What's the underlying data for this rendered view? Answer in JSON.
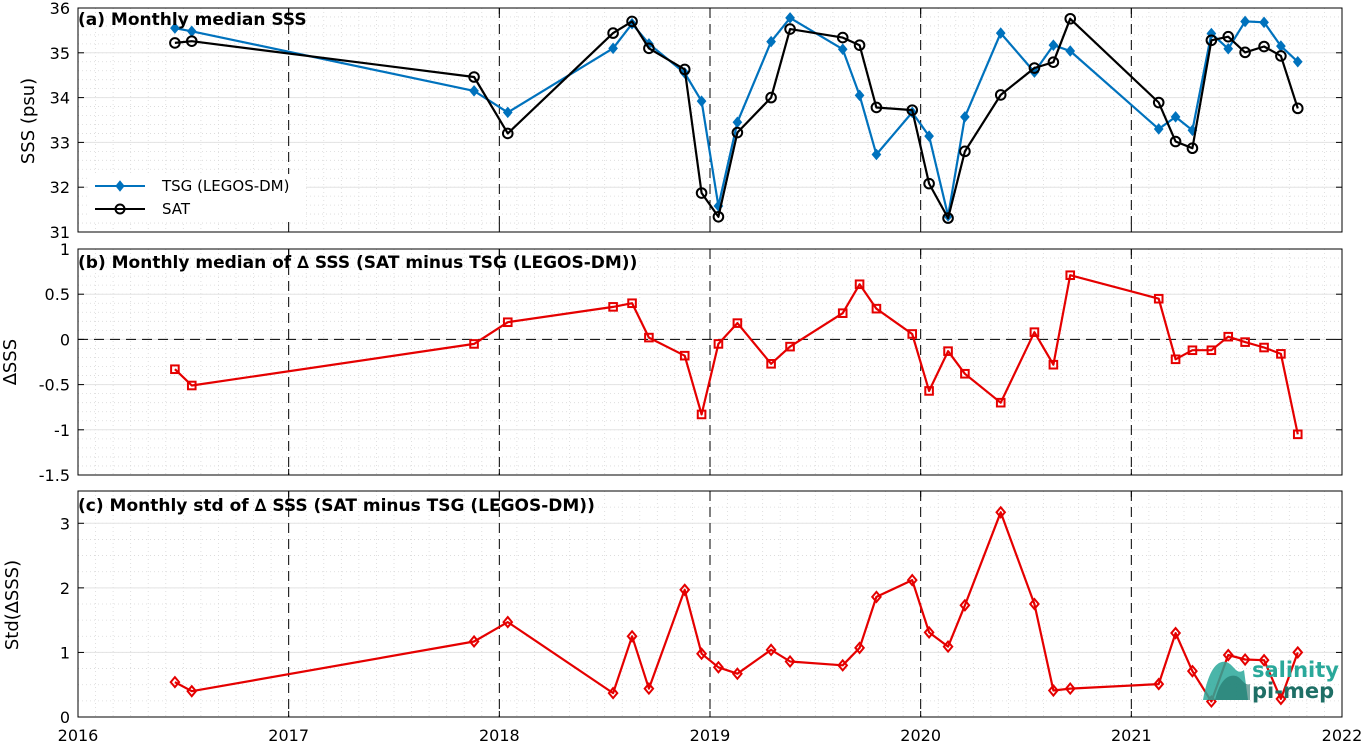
{
  "colors": {
    "tsg": "#0072BD",
    "sat": "#000000",
    "delta": "#E50000",
    "logo_teal": "#2aa89a",
    "logo_dark": "#1f6f66"
  },
  "logo": {
    "word1": "salinity",
    "word2": "pi-mep"
  },
  "chart_data": [
    {
      "type": "line",
      "title": "(a) Monthly median SSS",
      "ylabel": "SSS (psu)",
      "xlim": [
        2016,
        2022
      ],
      "ylim": [
        31,
        36
      ],
      "xticks": [
        "2016",
        "2017",
        "2018",
        "2019",
        "2020",
        "2021",
        "2022"
      ],
      "yticks": [
        "31",
        "32",
        "33",
        "34",
        "35",
        "36"
      ],
      "grid": true,
      "legend": "bottom-left",
      "series": [
        {
          "name": "TSG (LEGOS-DM)",
          "marker": "diamond",
          "x": [
            2016.46,
            2016.54,
            2017.88,
            2018.04,
            2018.54,
            2018.63,
            2018.71,
            2018.88,
            2018.96,
            2019.04,
            2019.13,
            2019.29,
            2019.38,
            2019.63,
            2019.71,
            2019.79,
            2019.96,
            2020.04,
            2020.13,
            2020.21,
            2020.38,
            2020.54,
            2020.63,
            2020.71,
            2021.13,
            2021.21,
            2021.29,
            2021.38,
            2021.46,
            2021.54,
            2021.63,
            2021.71,
            2021.79
          ],
          "y": [
            35.55,
            35.48,
            34.15,
            33.67,
            35.1,
            35.65,
            35.2,
            34.55,
            33.92,
            31.58,
            33.45,
            35.25,
            35.78,
            35.08,
            34.05,
            32.73,
            33.67,
            33.14,
            31.36,
            33.57,
            35.44,
            34.57,
            35.17,
            35.04,
            33.3,
            33.57,
            33.27,
            35.43,
            35.09,
            35.7,
            35.68,
            35.15,
            34.8
          ]
        },
        {
          "name": "SAT",
          "marker": "circle",
          "x": [
            2016.46,
            2016.54,
            2017.88,
            2018.04,
            2018.54,
            2018.63,
            2018.71,
            2018.88,
            2018.96,
            2019.04,
            2019.13,
            2019.29,
            2019.38,
            2019.63,
            2019.71,
            2019.79,
            2019.96,
            2020.04,
            2020.13,
            2020.21,
            2020.38,
            2020.54,
            2020.63,
            2020.71,
            2021.13,
            2021.21,
            2021.29,
            2021.38,
            2021.46,
            2021.54,
            2021.63,
            2021.71,
            2021.79
          ],
          "y": [
            35.22,
            35.26,
            34.46,
            33.2,
            35.44,
            35.7,
            35.1,
            34.63,
            31.87,
            31.34,
            33.22,
            34.0,
            35.53,
            35.34,
            35.17,
            33.78,
            33.72,
            32.08,
            31.31,
            32.8,
            34.06,
            34.66,
            34.79,
            35.76,
            33.89,
            33.02,
            32.87,
            35.28,
            35.36,
            35.01,
            35.14,
            34.93,
            33.76
          ]
        }
      ]
    },
    {
      "type": "line",
      "title": "(b) Monthly median of ∆ SSS (SAT minus TSG (LEGOS-DM))",
      "ylabel": "∆SSS",
      "xlim": [
        2016,
        2022
      ],
      "ylim": [
        -1.5,
        1
      ],
      "xticks": [
        "2016",
        "2017",
        "2018",
        "2019",
        "2020",
        "2021",
        "2022"
      ],
      "yticks": [
        "-1.5",
        "-1",
        "-0.5",
        "0",
        "0.5",
        "1"
      ],
      "zero_line": true,
      "grid": true,
      "series": [
        {
          "marker": "square",
          "x": [
            2016.46,
            2016.54,
            2017.88,
            2018.04,
            2018.54,
            2018.63,
            2018.71,
            2018.88,
            2018.96,
            2019.04,
            2019.13,
            2019.29,
            2019.38,
            2019.63,
            2019.71,
            2019.79,
            2019.96,
            2020.04,
            2020.13,
            2020.21,
            2020.38,
            2020.54,
            2020.63,
            2020.71,
            2021.13,
            2021.21,
            2021.29,
            2021.38,
            2021.46,
            2021.54,
            2021.63,
            2021.71,
            2021.79
          ],
          "y": [
            -0.33,
            -0.51,
            -0.05,
            0.19,
            0.36,
            0.4,
            0.02,
            -0.18,
            -0.83,
            -0.05,
            0.18,
            -0.27,
            -0.08,
            0.29,
            0.61,
            0.34,
            0.06,
            -0.57,
            -0.13,
            -0.38,
            -0.7,
            0.08,
            -0.28,
            0.71,
            0.45,
            -0.22,
            -0.12,
            -0.12,
            0.03,
            -0.03,
            -0.09,
            -0.16,
            -1.05
          ]
        }
      ]
    },
    {
      "type": "line",
      "title": "(c) Monthly std of ∆ SSS (SAT minus TSG (LEGOS-DM))",
      "ylabel": "Std(∆SSS)",
      "xlim": [
        2016,
        2022
      ],
      "ylim": [
        0,
        3.5
      ],
      "xticks": [
        "2016",
        "2017",
        "2018",
        "2019",
        "2020",
        "2021",
        "2022"
      ],
      "yticks": [
        "0",
        "1",
        "2",
        "3"
      ],
      "grid": true,
      "series": [
        {
          "marker": "diamond",
          "x": [
            2016.46,
            2016.54,
            2017.88,
            2018.04,
            2018.54,
            2018.63,
            2018.71,
            2018.88,
            2018.96,
            2019.04,
            2019.13,
            2019.29,
            2019.38,
            2019.63,
            2019.71,
            2019.79,
            2019.96,
            2020.04,
            2020.13,
            2020.21,
            2020.38,
            2020.54,
            2020.63,
            2020.71,
            2021.13,
            2021.21,
            2021.29,
            2021.38,
            2021.46,
            2021.54,
            2021.63,
            2021.71,
            2021.79
          ],
          "y": [
            0.54,
            0.4,
            1.17,
            1.47,
            0.37,
            1.25,
            0.44,
            1.97,
            0.98,
            0.77,
            0.67,
            1.04,
            0.86,
            0.8,
            1.07,
            1.86,
            2.12,
            1.31,
            1.09,
            1.73,
            3.17,
            1.75,
            0.41,
            0.44,
            0.51,
            1.3,
            0.71,
            0.24,
            0.96,
            0.89,
            0.88,
            0.28,
            1.0
          ]
        }
      ]
    }
  ]
}
